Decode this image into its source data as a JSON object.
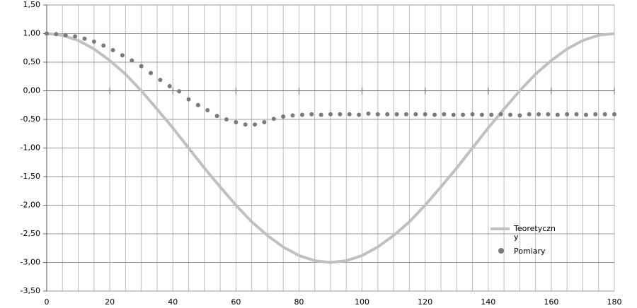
{
  "chart_data": {
    "type": "line-scatter",
    "xlim": [
      0,
      180
    ],
    "xticks": [
      0,
      20,
      40,
      60,
      80,
      100,
      120,
      140,
      160,
      180
    ],
    "xgrid": [
      0,
      5,
      10,
      15,
      20,
      25,
      30,
      35,
      40,
      45,
      50,
      55,
      60,
      65,
      70,
      75,
      80,
      85,
      90,
      95,
      100,
      105,
      110,
      115,
      120,
      125,
      130,
      135,
      140,
      145,
      150,
      155,
      160,
      165,
      170,
      175,
      180
    ],
    "ylim": [
      -3.5,
      1.5
    ],
    "yticks": [
      {
        "value": 1.5,
        "label": "1,50"
      },
      {
        "value": 1,
        "label": "1,00"
      },
      {
        "value": 0.5,
        "label": "0,50"
      },
      {
        "value": 0,
        "label": "0,00"
      },
      {
        "value": -0.5,
        "label": "-0,50"
      },
      {
        "value": -1,
        "label": "-1,00"
      },
      {
        "value": -1.5,
        "label": "-1,50"
      },
      {
        "value": -2,
        "label": "-2,00"
      },
      {
        "value": -2.5,
        "label": "-2,50"
      },
      {
        "value": -3,
        "label": "-3,00"
      },
      {
        "value": -3.5,
        "label": "-3,50"
      }
    ],
    "grid": true,
    "series": [
      {
        "name": "Teoretyczny",
        "kind": "line",
        "color": "#c0c0c0",
        "x": [
          0,
          5,
          10,
          15,
          20,
          25,
          30,
          35,
          40,
          45,
          50,
          55,
          60,
          65,
          70,
          75,
          80,
          85,
          90,
          95,
          100,
          105,
          110,
          115,
          120,
          125,
          130,
          135,
          140,
          145,
          150,
          155,
          160,
          165,
          170,
          175,
          180
        ],
        "values": [
          1,
          0.97,
          0.88,
          0.73,
          0.53,
          0.29,
          0,
          -0.32,
          -0.65,
          -1,
          -1.35,
          -1.68,
          -2,
          -2.29,
          -2.53,
          -2.73,
          -2.88,
          -2.97,
          -3,
          -2.97,
          -2.88,
          -2.73,
          -2.53,
          -2.29,
          -2,
          -1.68,
          -1.35,
          -1,
          -0.65,
          -0.32,
          0,
          0.29,
          0.53,
          0.73,
          0.88,
          0.97,
          1
        ]
      },
      {
        "name": "Pomiary",
        "kind": "scatter",
        "color": "#7a7a7a",
        "x": [
          0,
          3,
          6,
          9,
          12,
          15,
          18,
          21,
          24,
          27,
          30,
          33,
          36,
          39,
          42,
          45,
          48,
          51,
          54,
          57,
          60,
          63,
          66,
          69,
          72,
          75,
          78,
          81,
          84,
          87,
          90,
          93,
          96,
          99,
          102,
          105,
          108,
          111,
          114,
          117,
          120,
          123,
          126,
          129,
          132,
          135,
          138,
          141,
          144,
          147,
          150,
          153,
          156,
          159,
          162,
          165,
          168,
          171,
          174,
          177,
          180
        ],
        "values": [
          1,
          0.99,
          0.97,
          0.95,
          0.91,
          0.86,
          0.79,
          0.71,
          0.62,
          0.53,
          0.43,
          0.31,
          0.19,
          0.08,
          -0.01,
          -0.15,
          -0.25,
          -0.34,
          -0.44,
          -0.5,
          -0.55,
          -0.59,
          -0.59,
          -0.55,
          -0.49,
          -0.45,
          -0.43,
          -0.42,
          -0.41,
          -0.42,
          -0.41,
          -0.41,
          -0.41,
          -0.42,
          -0.4,
          -0.41,
          -0.41,
          -0.41,
          -0.41,
          -0.41,
          -0.41,
          -0.42,
          -0.41,
          -0.42,
          -0.42,
          -0.41,
          -0.42,
          -0.42,
          -0.41,
          -0.42,
          -0.43,
          -0.41,
          -0.41,
          -0.41,
          -0.42,
          -0.41,
          -0.41,
          -0.42,
          -0.41,
          -0.41,
          -0.41
        ]
      }
    ]
  }
}
